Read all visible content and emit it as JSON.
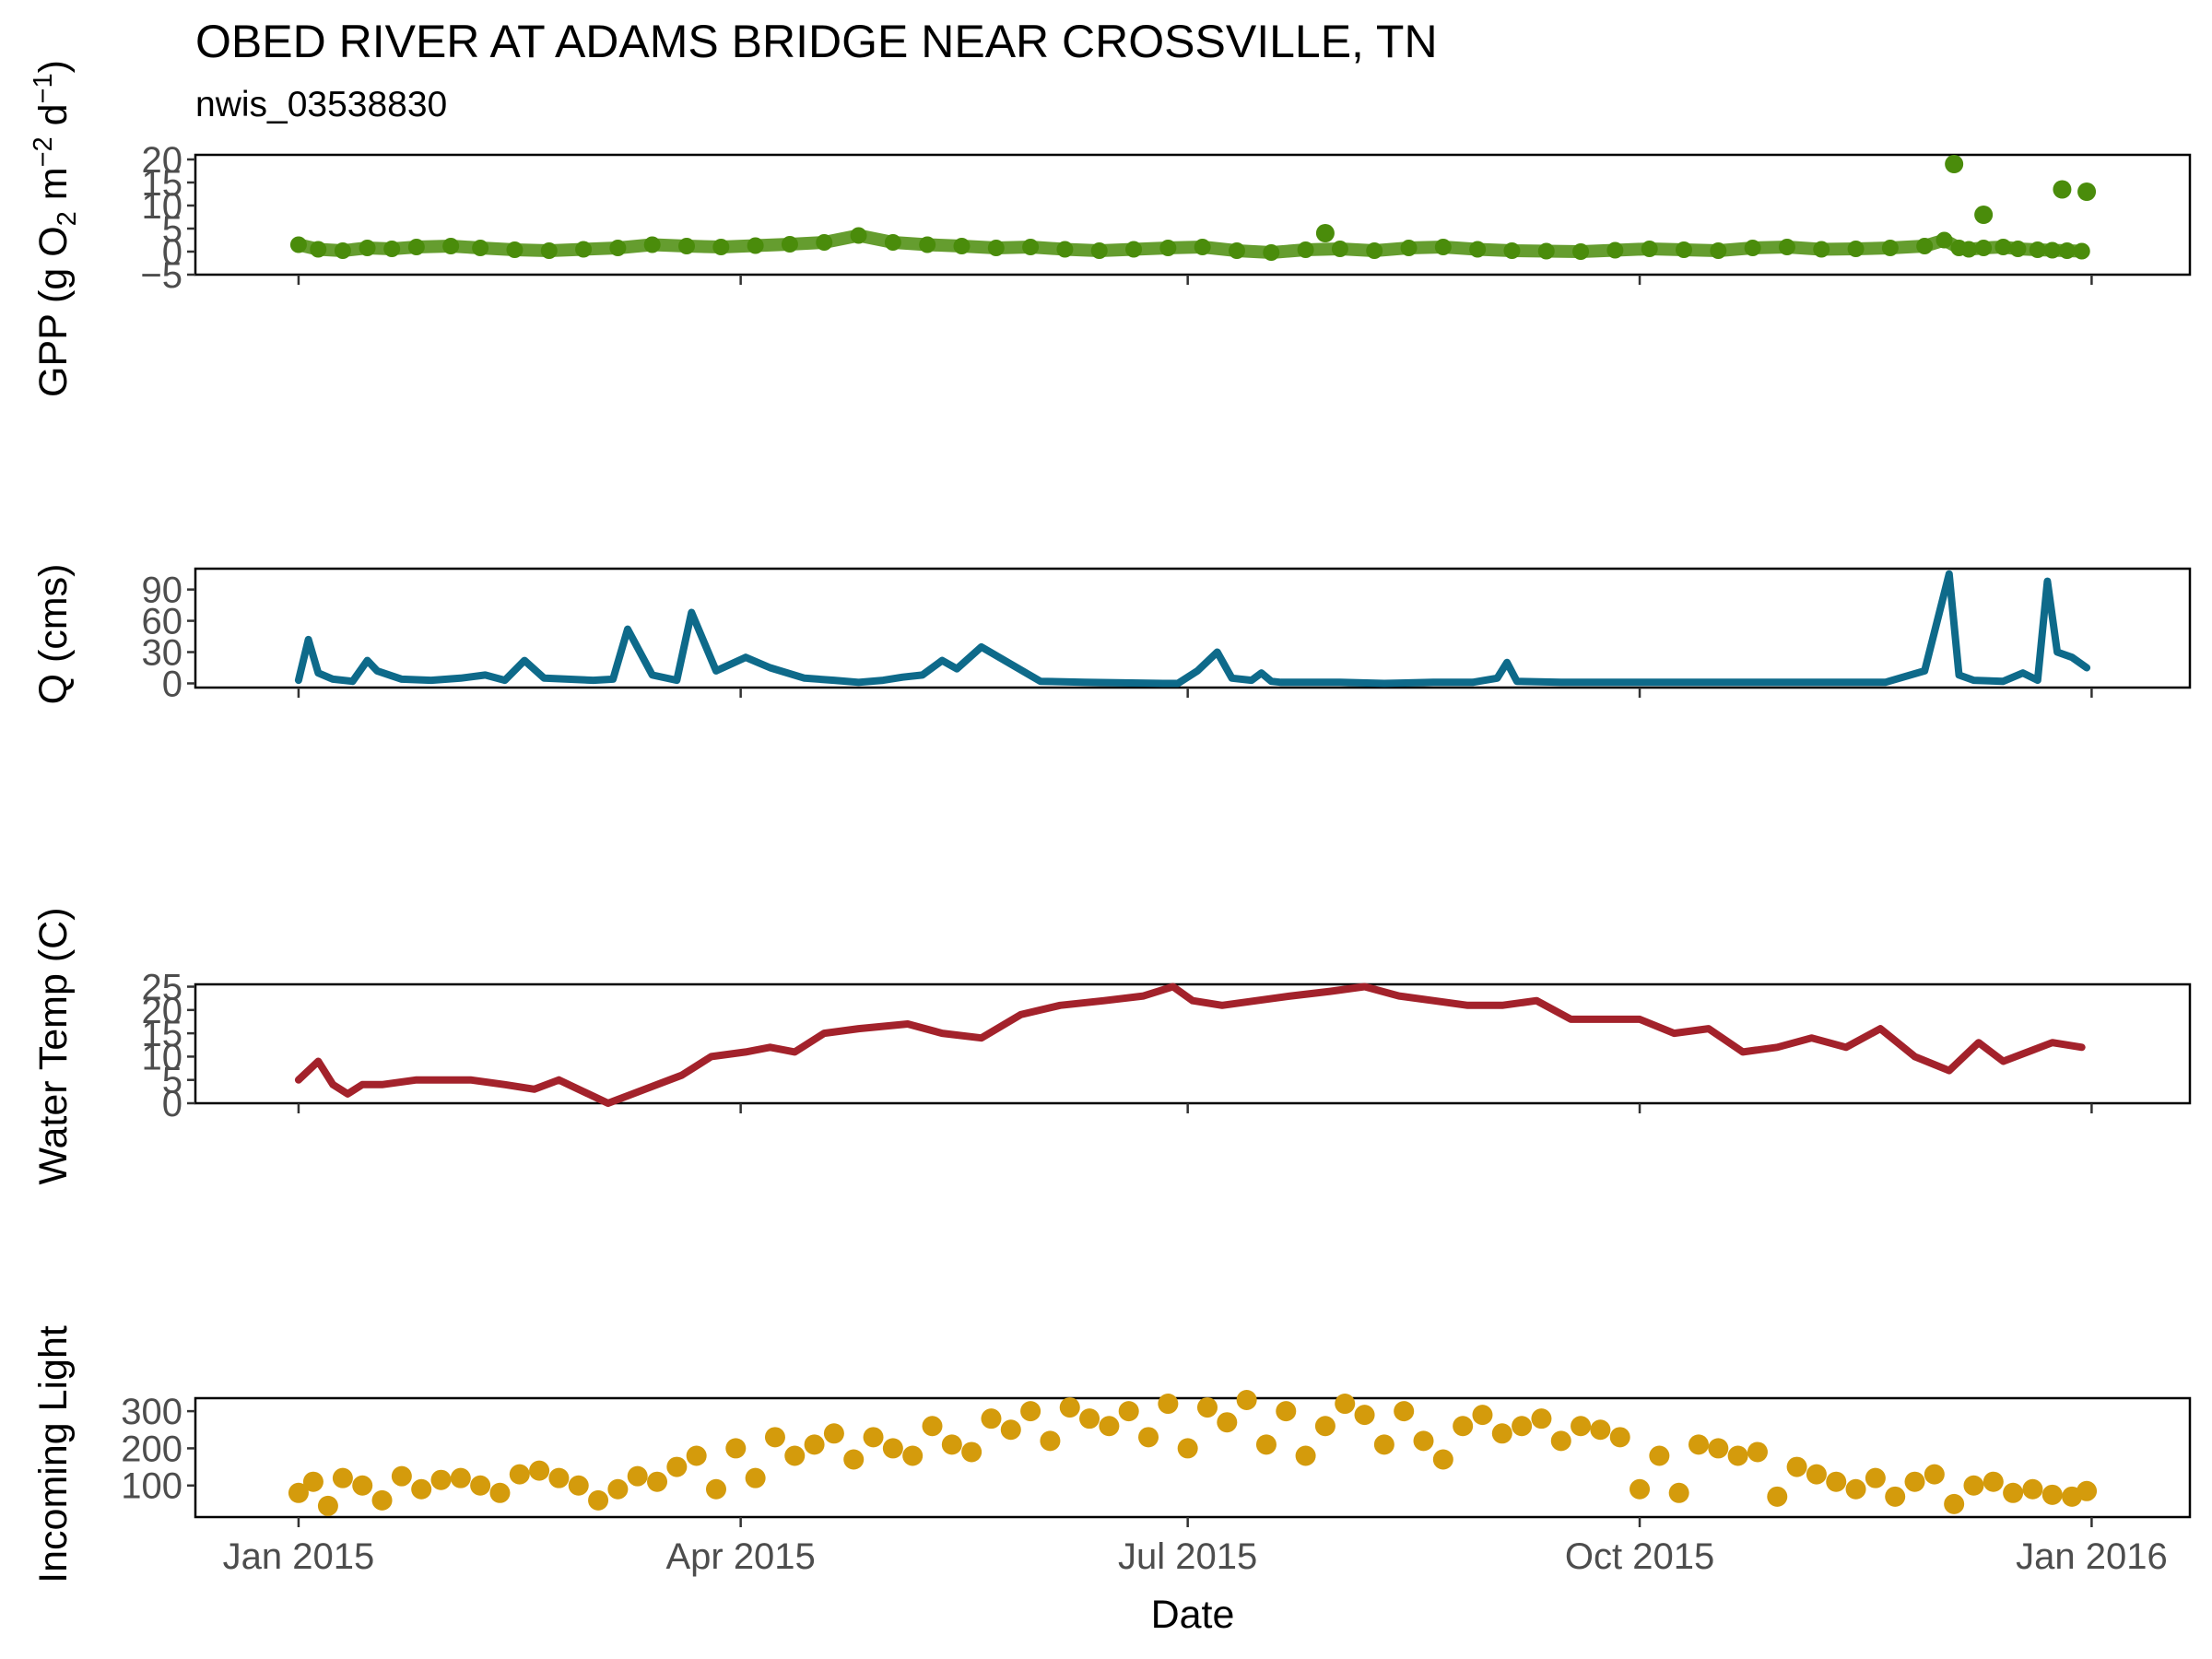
{
  "title": "OBED RIVER AT ADAMS BRIDGE NEAR CROSSVILLE, TN",
  "subtitle": "nwis_03538830",
  "colors": {
    "gpp": "#4a8c0b",
    "q": "#0e6a8a",
    "temp": "#a3222b",
    "light": "#d49b0c"
  },
  "chart_data": [
    {
      "type": "scatter",
      "name": "gpp",
      "ylabel": "GPP (g O2 m-2 d-1)",
      "xlabel": "",
      "yticks": [
        -5,
        0,
        5,
        10,
        15,
        20
      ],
      "ylim": [
        -5,
        21
      ],
      "xlim": [
        "2014-12-11",
        "2016-01-21"
      ],
      "x": [
        "2015-01-01",
        "2015-01-05",
        "2015-01-10",
        "2015-01-15",
        "2015-01-20",
        "2015-01-25",
        "2015-02-01",
        "2015-02-07",
        "2015-02-14",
        "2015-02-21",
        "2015-02-28",
        "2015-03-07",
        "2015-03-14",
        "2015-03-21",
        "2015-03-28",
        "2015-04-04",
        "2015-04-11",
        "2015-04-18",
        "2015-04-25",
        "2015-05-02",
        "2015-05-09",
        "2015-05-16",
        "2015-05-23",
        "2015-05-30",
        "2015-06-06",
        "2015-06-13",
        "2015-06-20",
        "2015-06-27",
        "2015-07-04",
        "2015-07-11",
        "2015-07-18",
        "2015-07-25",
        "2015-08-01",
        "2015-08-08",
        "2015-08-15",
        "2015-08-22",
        "2015-08-29",
        "2015-09-05",
        "2015-09-12",
        "2015-09-19",
        "2015-09-26",
        "2015-10-03",
        "2015-10-10",
        "2015-10-17",
        "2015-10-24",
        "2015-10-31",
        "2015-11-07",
        "2015-11-14",
        "2015-11-21",
        "2015-11-28",
        "2015-12-02",
        "2015-12-05",
        "2015-12-07",
        "2015-12-10",
        "2015-12-14",
        "2015-12-17",
        "2015-12-21",
        "2015-12-24",
        "2015-12-27",
        "2015-12-30"
      ],
      "y": [
        1.5,
        0.5,
        0.2,
        0.8,
        0.6,
        1.0,
        1.2,
        0.8,
        0.4,
        0.2,
        0.5,
        0.8,
        1.5,
        1.2,
        1.0,
        1.3,
        1.6,
        2.0,
        3.5,
        2.0,
        1.5,
        1.2,
        0.8,
        1.0,
        0.5,
        0.2,
        0.5,
        0.8,
        1.0,
        0.2,
        -0.2,
        0.4,
        0.6,
        0.2,
        0.8,
        1.0,
        0.5,
        0.2,
        0.1,
        0.0,
        0.3,
        0.6,
        0.4,
        0.2,
        0.8,
        1.0,
        0.5,
        0.6,
        0.8,
        1.2,
        2.5,
        0.8,
        0.5,
        0.8,
        1.0,
        0.6,
        0.4,
        0.3,
        0.2,
        0.1
      ],
      "outliers": {
        "x": [
          "2015-07-29",
          "2015-12-04",
          "2015-12-10",
          "2015-12-26",
          "2015-12-31"
        ],
        "y": [
          4.0,
          19.0,
          8.0,
          13.5,
          13.0
        ]
      }
    },
    {
      "type": "line",
      "name": "q",
      "ylabel": "Q (cms)",
      "xlabel": "",
      "yticks": [
        0,
        30,
        60,
        90
      ],
      "ylim": [
        -4,
        110
      ],
      "xlim": [
        "2014-12-11",
        "2016-01-21"
      ],
      "x": [
        "2015-01-01",
        "2015-01-03",
        "2015-01-05",
        "2015-01-08",
        "2015-01-12",
        "2015-01-15",
        "2015-01-17",
        "2015-01-22",
        "2015-01-28",
        "2015-02-03",
        "2015-02-08",
        "2015-02-12",
        "2015-02-16",
        "2015-02-20",
        "2015-03-02",
        "2015-03-06",
        "2015-03-09",
        "2015-03-14",
        "2015-03-19",
        "2015-03-22",
        "2015-03-27",
        "2015-04-02",
        "2015-04-07",
        "2015-04-14",
        "2015-04-20",
        "2015-04-25",
        "2015-04-30",
        "2015-05-04",
        "2015-05-08",
        "2015-05-12",
        "2015-05-15",
        "2015-05-20",
        "2015-06-01",
        "2015-06-10",
        "2015-06-26",
        "2015-06-29",
        "2015-07-03",
        "2015-07-07",
        "2015-07-10",
        "2015-07-14",
        "2015-07-16",
        "2015-07-18",
        "2015-07-20",
        "2015-07-25",
        "2015-08-01",
        "2015-08-10",
        "2015-08-20",
        "2015-08-28",
        "2015-09-02",
        "2015-09-04",
        "2015-09-06",
        "2015-09-15",
        "2015-10-01",
        "2015-11-01",
        "2015-11-20",
        "2015-11-28",
        "2015-12-03",
        "2015-12-05",
        "2015-12-08",
        "2015-12-14",
        "2015-12-18",
        "2015-12-21",
        "2015-12-23",
        "2015-12-25",
        "2015-12-28",
        "2015-12-31"
      ],
      "y": [
        3,
        42,
        10,
        4,
        2,
        22,
        12,
        4,
        3,
        5,
        8,
        3,
        22,
        5,
        3,
        4,
        52,
        8,
        3,
        68,
        12,
        25,
        15,
        5,
        3,
        1,
        3,
        6,
        8,
        22,
        14,
        35,
        2,
        1,
        0,
        0,
        12,
        30,
        5,
        3,
        10,
        2,
        1,
        1,
        1,
        0,
        1,
        1,
        5,
        20,
        2,
        1,
        1,
        1,
        1,
        12,
        105,
        8,
        3,
        2,
        10,
        3,
        98,
        30,
        25,
        15
      ]
    },
    {
      "type": "line",
      "name": "temp",
      "ylabel": "Water Temp (C)",
      "xlabel": "",
      "yticks": [
        0,
        5,
        10,
        15,
        20,
        25
      ],
      "ylim": [
        0,
        25.5
      ],
      "xlim": [
        "2014-12-11",
        "2016-01-21"
      ],
      "x": [
        "2015-01-01",
        "2015-01-05",
        "2015-01-08",
        "2015-01-11",
        "2015-01-14",
        "2015-01-18",
        "2015-01-25",
        "2015-02-05",
        "2015-02-12",
        "2015-02-18",
        "2015-02-23",
        "2015-03-01",
        "2015-03-05",
        "2015-03-10",
        "2015-03-15",
        "2015-03-20",
        "2015-03-26",
        "2015-04-02",
        "2015-04-07",
        "2015-04-12",
        "2015-04-18",
        "2015-04-25",
        "2015-05-05",
        "2015-05-12",
        "2015-05-20",
        "2015-05-28",
        "2015-06-05",
        "2015-06-14",
        "2015-06-22",
        "2015-06-28",
        "2015-07-02",
        "2015-07-08",
        "2015-07-15",
        "2015-07-22",
        "2015-07-30",
        "2015-08-06",
        "2015-08-13",
        "2015-08-20",
        "2015-08-27",
        "2015-09-03",
        "2015-09-10",
        "2015-09-17",
        "2015-09-24",
        "2015-10-01",
        "2015-10-08",
        "2015-10-15",
        "2015-10-22",
        "2015-10-29",
        "2015-11-05",
        "2015-11-12",
        "2015-11-19",
        "2015-11-26",
        "2015-12-03",
        "2015-12-09",
        "2015-12-14",
        "2015-12-19",
        "2015-12-24",
        "2015-12-30"
      ],
      "y": [
        5,
        9,
        4,
        2,
        4,
        4,
        5,
        5,
        4,
        3,
        5,
        2,
        0,
        2,
        4,
        6,
        10,
        11,
        12,
        11,
        15,
        16,
        17,
        15,
        14,
        19,
        21,
        22,
        23,
        25,
        22,
        21,
        22,
        23,
        24,
        25,
        23,
        22,
        21,
        21,
        22,
        18,
        18,
        18,
        15,
        16,
        11,
        12,
        14,
        12,
        16,
        10,
        7,
        13,
        9,
        11,
        13,
        12
      ]
    },
    {
      "type": "scatter",
      "name": "light",
      "ylabel": "Incoming Light",
      "xlabel": "Date",
      "yticks": [
        100,
        200,
        300
      ],
      "ylim": [
        15,
        335
      ],
      "xlim": [
        "2014-12-11",
        "2016-01-21"
      ],
      "xticks": [
        "2015-01-01",
        "2015-04-01",
        "2015-07-01",
        "2015-10-01",
        "2016-01-01"
      ],
      "xtick_labels": [
        "Jan 2015",
        "Apr 2015",
        "Jul 2015",
        "Oct 2015",
        "Jan 2016"
      ],
      "x": [
        "2015-01-01",
        "2015-01-04",
        "2015-01-07",
        "2015-01-10",
        "2015-01-14",
        "2015-01-18",
        "2015-01-22",
        "2015-01-26",
        "2015-01-30",
        "2015-02-03",
        "2015-02-07",
        "2015-02-11",
        "2015-02-15",
        "2015-02-19",
        "2015-02-23",
        "2015-02-27",
        "2015-03-03",
        "2015-03-07",
        "2015-03-11",
        "2015-03-15",
        "2015-03-19",
        "2015-03-23",
        "2015-03-27",
        "2015-03-31",
        "2015-04-04",
        "2015-04-08",
        "2015-04-12",
        "2015-04-16",
        "2015-04-20",
        "2015-04-24",
        "2015-04-28",
        "2015-05-02",
        "2015-05-06",
        "2015-05-10",
        "2015-05-14",
        "2015-05-18",
        "2015-05-22",
        "2015-05-26",
        "2015-05-30",
        "2015-06-03",
        "2015-06-07",
        "2015-06-11",
        "2015-06-15",
        "2015-06-19",
        "2015-06-23",
        "2015-06-27",
        "2015-07-01",
        "2015-07-05",
        "2015-07-09",
        "2015-07-13",
        "2015-07-17",
        "2015-07-21",
        "2015-07-25",
        "2015-07-29",
        "2015-08-02",
        "2015-08-06",
        "2015-08-10",
        "2015-08-14",
        "2015-08-18",
        "2015-08-22",
        "2015-08-26",
        "2015-08-30",
        "2015-09-03",
        "2015-09-07",
        "2015-09-11",
        "2015-09-15",
        "2015-09-19",
        "2015-09-23",
        "2015-09-27",
        "2015-10-01",
        "2015-10-05",
        "2015-10-09",
        "2015-10-13",
        "2015-10-17",
        "2015-10-21",
        "2015-10-25",
        "2015-10-29",
        "2015-11-02",
        "2015-11-06",
        "2015-11-10",
        "2015-11-14",
        "2015-11-18",
        "2015-11-22",
        "2015-11-26",
        "2015-11-30",
        "2015-12-04",
        "2015-12-08",
        "2015-12-12",
        "2015-12-16",
        "2015-12-20",
        "2015-12-24",
        "2015-12-28",
        "2015-12-31"
      ],
      "y": [
        80,
        110,
        45,
        120,
        100,
        60,
        125,
        90,
        115,
        120,
        100,
        80,
        130,
        140,
        120,
        100,
        60,
        90,
        125,
        110,
        150,
        180,
        90,
        200,
        120,
        230,
        180,
        210,
        240,
        170,
        230,
        200,
        180,
        260,
        210,
        190,
        280,
        250,
        300,
        220,
        310,
        280,
        260,
        300,
        230,
        320,
        200,
        310,
        270,
        330,
        210,
        300,
        180,
        260,
        320,
        290,
        210,
        300,
        220,
        170,
        260,
        290,
        240,
        260,
        280,
        220,
        260,
        250,
        230,
        90,
        180,
        80,
        210,
        200,
        180,
        190,
        70,
        150,
        130,
        110,
        90,
        120,
        70,
        110,
        130,
        50,
        100,
        110,
        80,
        90,
        75,
        70,
        85
      ]
    }
  ]
}
